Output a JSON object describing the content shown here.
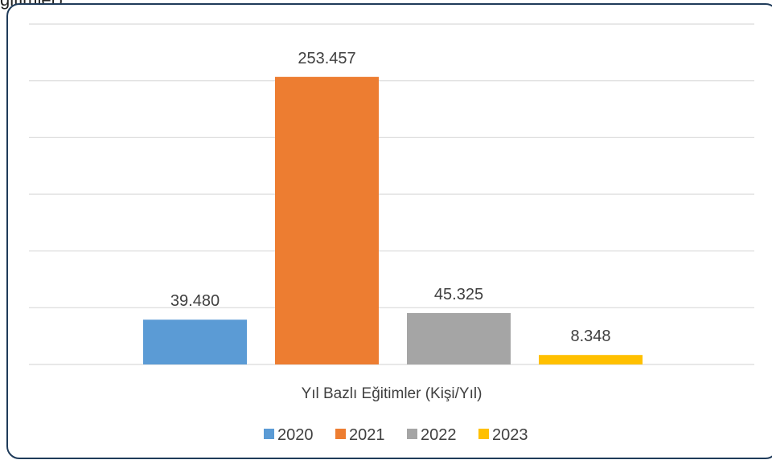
{
  "top_text": "ğitimler)",
  "chart_data": {
    "type": "bar",
    "title": "",
    "xlabel": "Yıl Bazlı Eğitimler (Kişi/Yıl)",
    "ylabel": "",
    "ylim": [
      0,
      300000
    ],
    "grid": true,
    "legend_position": "bottom",
    "series": [
      {
        "name": "2020",
        "value": 39480,
        "label": "39.480",
        "color": "#5b9bd5"
      },
      {
        "name": "2021",
        "value": 253457,
        "label": "253.457",
        "color": "#ed7d31"
      },
      {
        "name": "2022",
        "value": 45325,
        "label": "45.325",
        "color": "#a5a5a5"
      },
      {
        "name": "2023",
        "value": 8348,
        "label": "8.348",
        "color": "#ffc000"
      }
    ]
  }
}
